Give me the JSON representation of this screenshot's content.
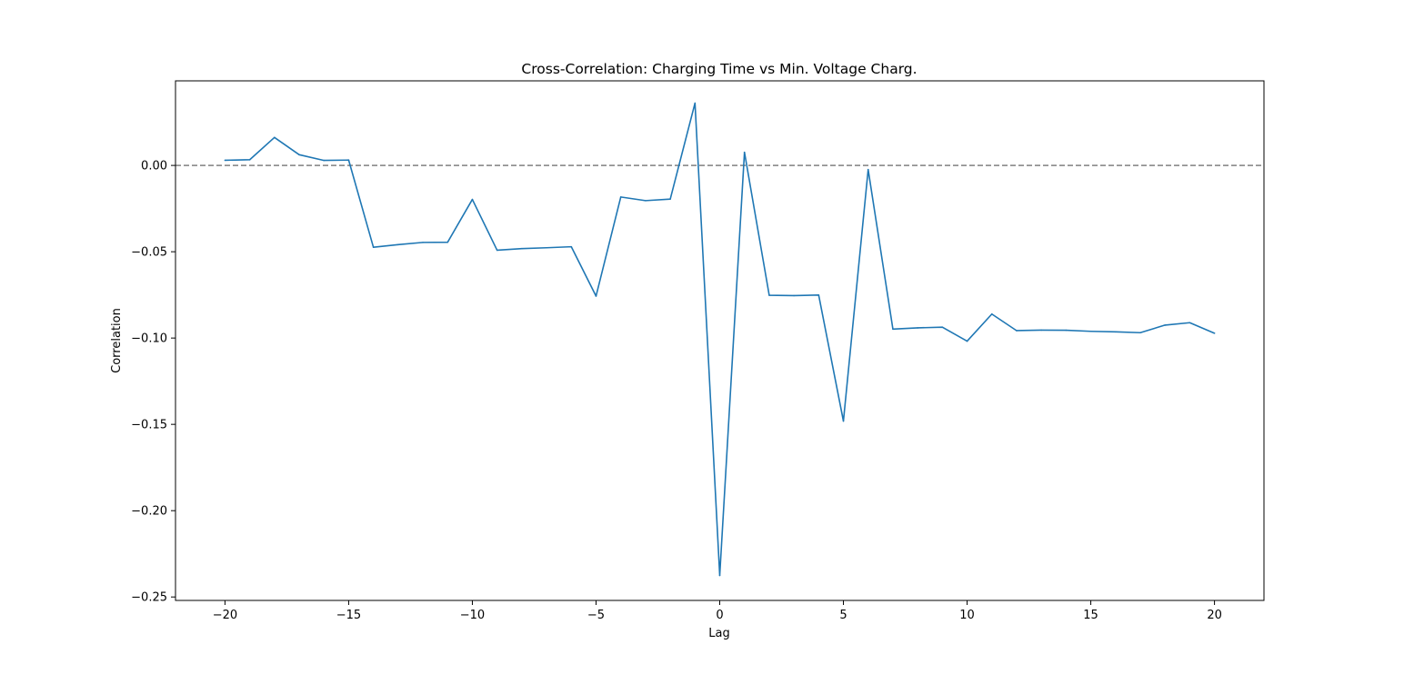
{
  "chart_data": {
    "type": "line",
    "title": "Cross-Correlation: Charging Time vs Min. Voltage Charg.",
    "xlabel": "Lag",
    "ylabel": "Correlation",
    "xlim": [
      -22,
      22
    ],
    "ylim": [
      -0.252,
      0.049
    ],
    "x_ticks": [
      -20,
      -15,
      -10,
      -5,
      0,
      5,
      10,
      15,
      20
    ],
    "x_tick_labels": [
      "−20",
      "−15",
      "−10",
      "−5",
      "0",
      "5",
      "10",
      "15",
      "20"
    ],
    "y_ticks": [
      0.0,
      -0.05,
      -0.1,
      -0.15,
      -0.2,
      -0.25
    ],
    "y_tick_labels": [
      "0.00",
      "−0.05",
      "−0.10",
      "−0.15",
      "−0.20",
      "−0.25"
    ],
    "grid": false,
    "reference_line": {
      "y": 0.0,
      "style": "dashed",
      "color": "#808080"
    },
    "series": [
      {
        "color": "#1f77b4",
        "x": [
          -20,
          -19,
          -18,
          -17,
          -16,
          -15,
          -14,
          -13,
          -12,
          -11,
          -10,
          -9,
          -8,
          -7,
          -6,
          -5,
          -4,
          -3,
          -2,
          -1,
          0,
          1,
          2,
          3,
          4,
          5,
          6,
          7,
          8,
          9,
          10,
          11,
          12,
          13,
          14,
          15,
          16,
          17,
          18,
          19,
          20
        ],
        "values": [
          0.003,
          0.0033,
          0.0162,
          0.0062,
          0.0029,
          0.0031,
          -0.0474,
          -0.0459,
          -0.0446,
          -0.0445,
          -0.0197,
          -0.0491,
          -0.0482,
          -0.0477,
          -0.0471,
          -0.0757,
          -0.0183,
          -0.0204,
          -0.0195,
          0.0361,
          -0.2375,
          0.0076,
          -0.0752,
          -0.0754,
          -0.0751,
          -0.1481,
          -0.0024,
          -0.0948,
          -0.0941,
          -0.0937,
          -0.1018,
          -0.0861,
          -0.0957,
          -0.0954,
          -0.0955,
          -0.0961,
          -0.0964,
          -0.0969,
          -0.0925,
          -0.0911,
          -0.0972
        ]
      }
    ]
  }
}
